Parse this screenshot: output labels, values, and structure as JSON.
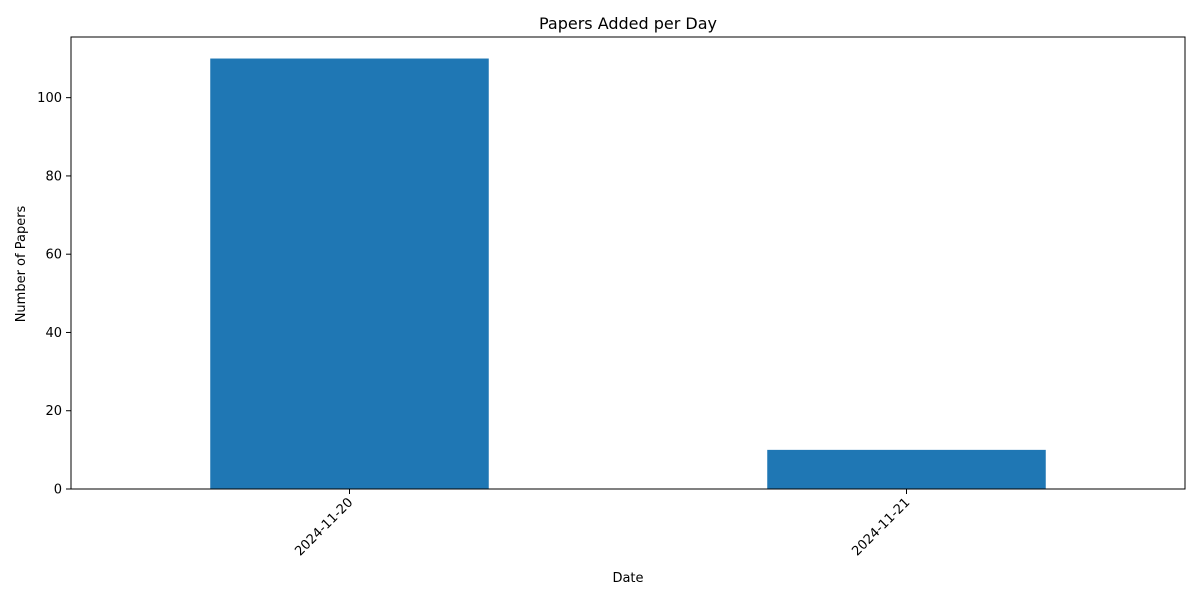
{
  "chart_data": {
    "type": "bar",
    "title": "Papers Added per Day",
    "xlabel": "Date",
    "ylabel": "Number of Papers",
    "categories": [
      "2024-11-20",
      "2024-11-21"
    ],
    "values": [
      110,
      10
    ],
    "ylim": [
      0,
      115.5
    ],
    "yticks": [
      0,
      20,
      40,
      60,
      80,
      100
    ],
    "bar_color": "#1f77b4",
    "grid": false,
    "legend": "none",
    "x_tick_rotation": 45
  }
}
